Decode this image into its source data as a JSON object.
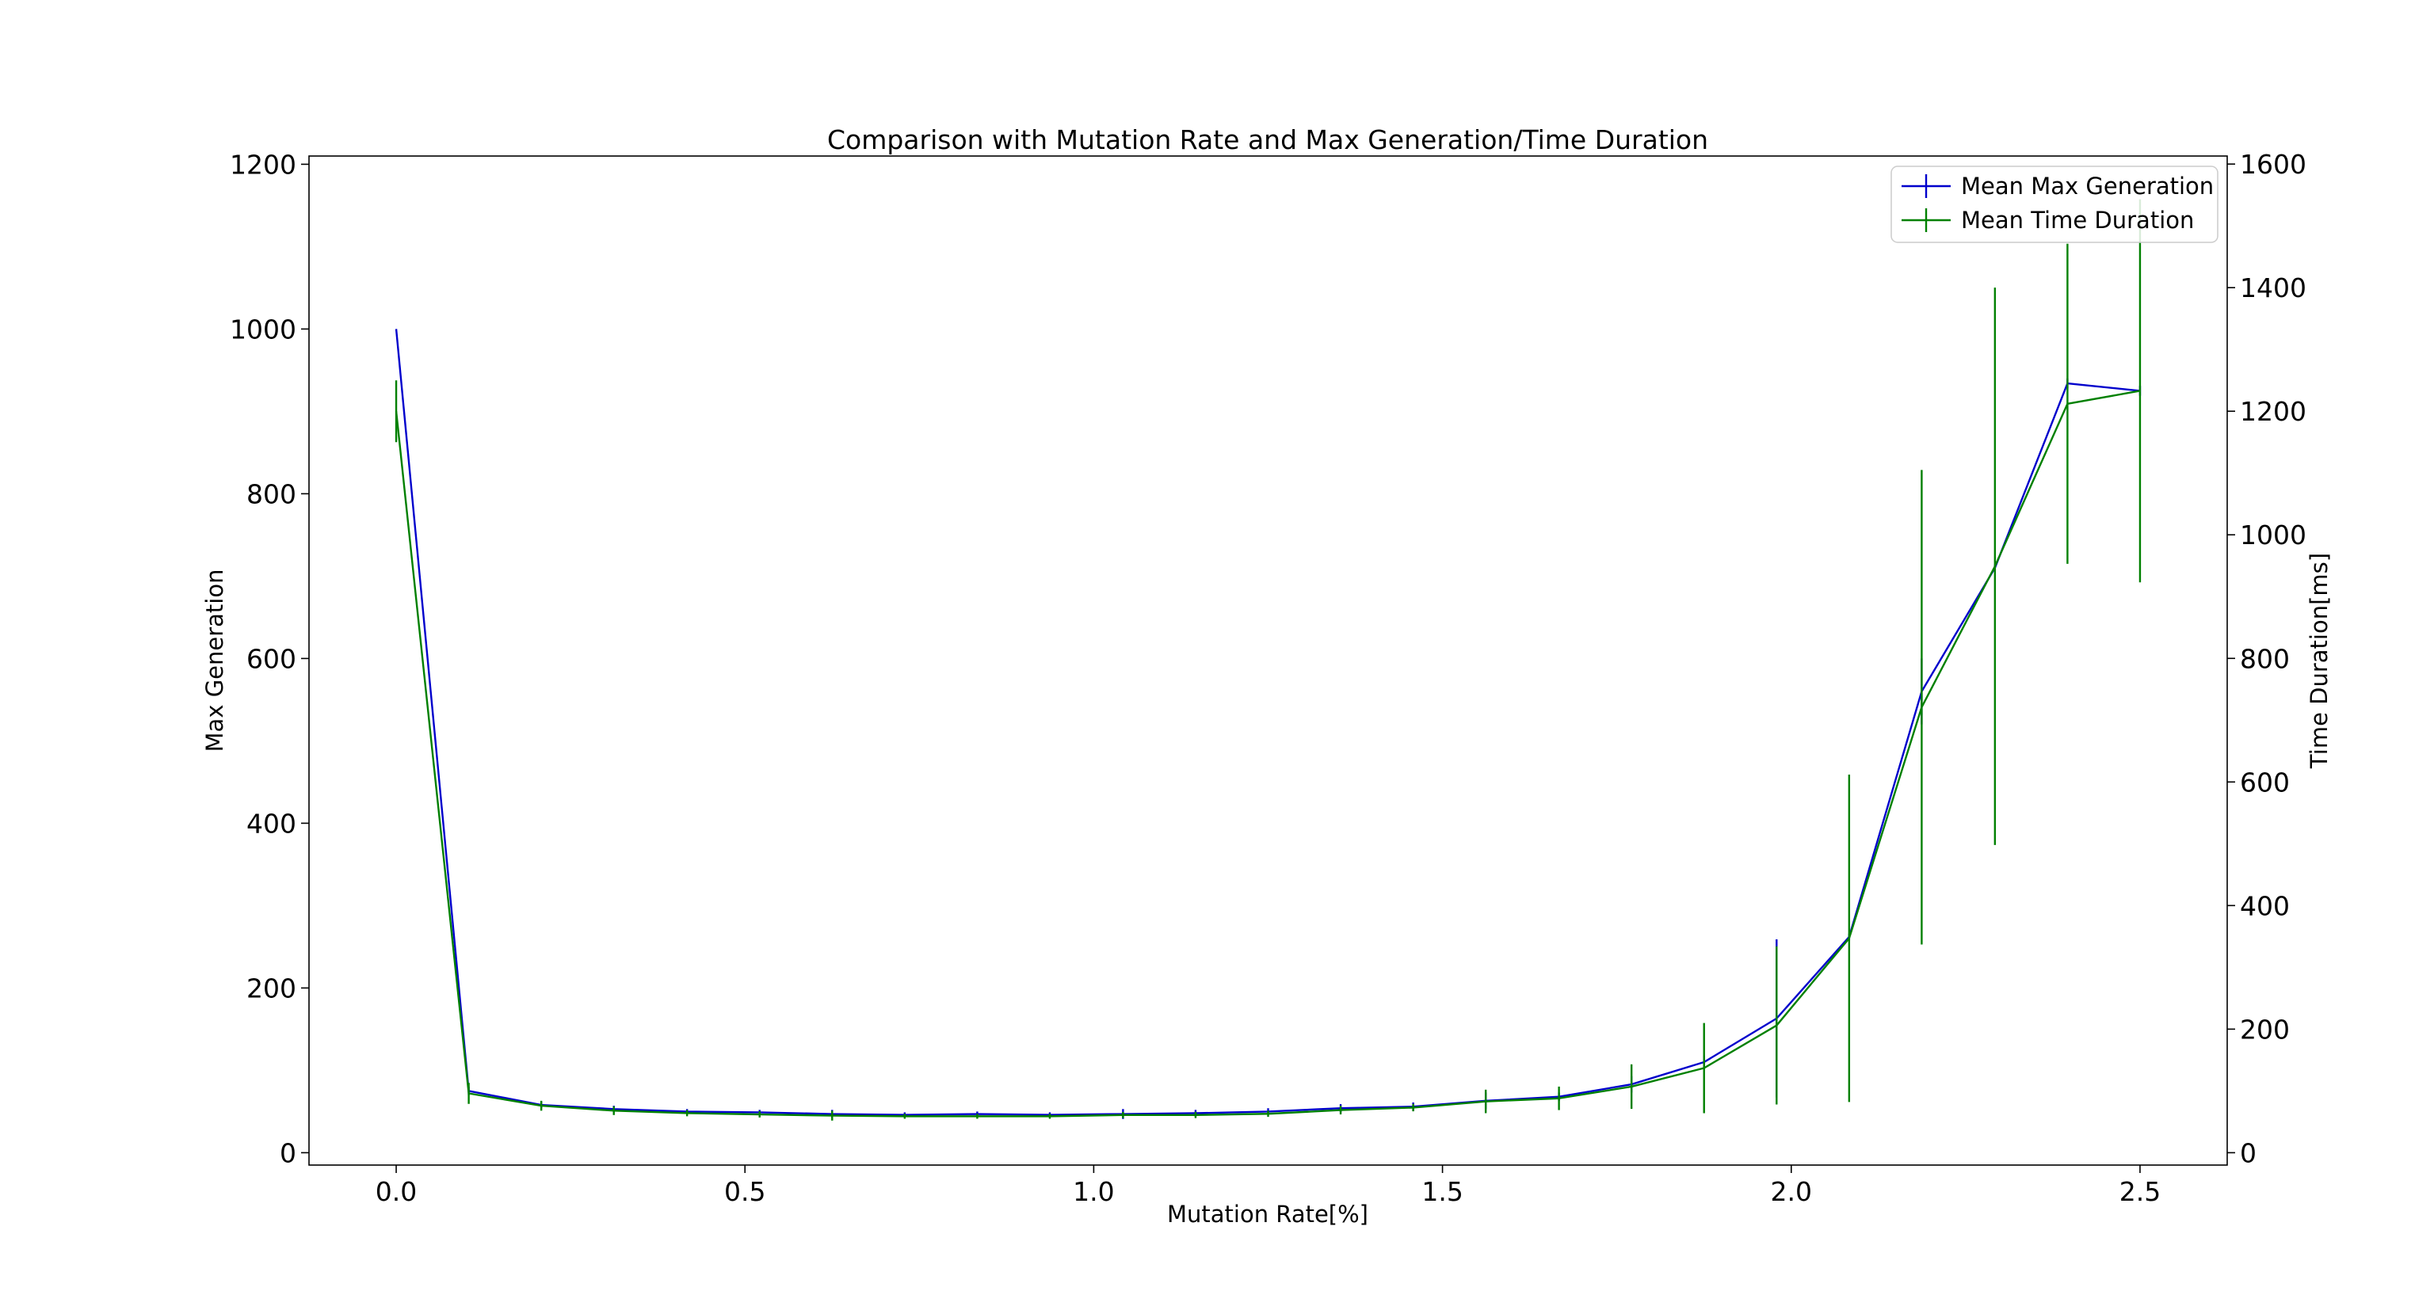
{
  "chart_data": {
    "type": "line",
    "title": "Comparison with Mutation Rate and Max Generation/Time Duration",
    "xlabel": "Mutation Rate[%]",
    "ylabel": "Max Generation",
    "y2label": "Time Duration[ms]",
    "xlim": [
      -0.125,
      2.625
    ],
    "ylim": [
      -15,
      1210
    ],
    "y2lim": [
      -20,
      1613
    ],
    "xticks": [
      0.0,
      0.5,
      1.0,
      1.5,
      2.0,
      2.5
    ],
    "xtick_labels": [
      "0.0",
      "0.5",
      "1.0",
      "1.5",
      "2.0",
      "2.5"
    ],
    "yticks": [
      0,
      200,
      400,
      600,
      800,
      1000,
      1200
    ],
    "ytick_labels": [
      "0",
      "200",
      "400",
      "600",
      "800",
      "1000",
      "1200"
    ],
    "y2ticks": [
      0,
      200,
      400,
      600,
      800,
      1000,
      1200,
      1400,
      1600
    ],
    "y2tick_labels": [
      "0",
      "200",
      "400",
      "600",
      "800",
      "1000",
      "1200",
      "1400",
      "1600"
    ],
    "grid": false,
    "legend_position": "top-right",
    "x": [
      0.0,
      0.104,
      0.208,
      0.312,
      0.417,
      0.521,
      0.625,
      0.729,
      0.833,
      0.937,
      1.042,
      1.146,
      1.25,
      1.354,
      1.458,
      1.562,
      1.667,
      1.771,
      1.875,
      1.979,
      2.083,
      2.187,
      2.292,
      2.396,
      2.5
    ],
    "series": [
      {
        "name": "Mean Max Generation",
        "axis": "left",
        "color": "#0000cc",
        "values": [
          1000,
          75,
          58,
          53,
          50,
          49,
          47,
          46,
          47,
          46,
          47,
          48,
          50,
          54,
          56,
          63,
          68,
          83,
          110,
          163,
          262,
          560,
          710,
          934,
          925
        ],
        "errors": [
          0,
          5,
          4,
          4,
          3,
          3,
          5,
          3,
          3,
          3,
          6,
          4,
          4,
          5,
          5,
          10,
          5,
          10,
          8,
          96,
          4,
          40,
          4,
          6,
          6
        ]
      },
      {
        "name": "Mean Time Duration",
        "axis": "right",
        "color": "#008000",
        "values": [
          1200,
          96,
          76,
          68,
          64,
          62,
          60,
          59,
          59,
          59,
          61,
          61,
          63,
          69,
          73,
          83,
          88,
          107,
          137,
          206,
          347,
          721,
          949,
          1212,
          1233
        ],
        "errors": [
          50,
          17,
          8,
          7,
          5,
          5,
          8,
          4,
          4,
          4,
          5,
          5,
          5,
          7,
          6,
          19,
          19,
          36,
          73,
          128,
          265,
          384,
          451,
          259,
          310
        ]
      }
    ]
  }
}
